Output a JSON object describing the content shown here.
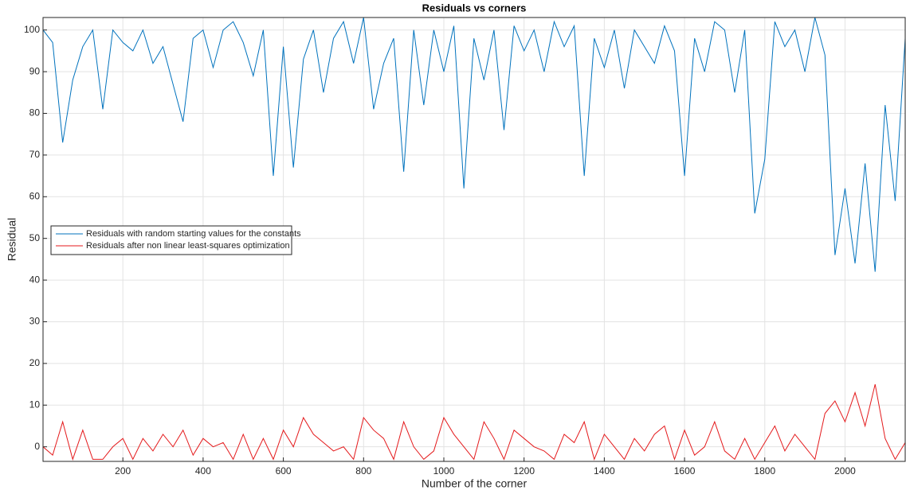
{
  "chart_data": {
    "type": "line",
    "title": "Residuals vs corners",
    "x_label": "Number of the corner",
    "y_label": "Residual",
    "x": [
      1,
      25,
      50,
      75,
      100,
      125,
      150,
      175,
      200,
      225,
      250,
      275,
      300,
      325,
      350,
      375,
      400,
      425,
      450,
      475,
      500,
      525,
      550,
      575,
      600,
      625,
      650,
      675,
      700,
      725,
      750,
      775,
      800,
      825,
      850,
      875,
      900,
      925,
      950,
      975,
      1000,
      1025,
      1050,
      1075,
      1100,
      1125,
      1150,
      1175,
      1200,
      1225,
      1250,
      1275,
      1300,
      1325,
      1350,
      1375,
      1400,
      1425,
      1450,
      1475,
      1500,
      1525,
      1550,
      1575,
      1600,
      1625,
      1650,
      1675,
      1700,
      1725,
      1750,
      1775,
      1800,
      1825,
      1850,
      1875,
      1900,
      1925,
      1950,
      1975,
      2000,
      2025,
      2050,
      2075,
      2100,
      2125,
      2150
    ],
    "series": [
      {
        "name": "Residuals with random starting values for the constants",
        "color": "#0072bd",
        "values": [
          100,
          97,
          73,
          88,
          96,
          100,
          81,
          100,
          97,
          95,
          100,
          92,
          96,
          87,
          78,
          98,
          100,
          91,
          100,
          102,
          97,
          89,
          100,
          65,
          96,
          67,
          93,
          100,
          85,
          98,
          102,
          92,
          103,
          81,
          92,
          98,
          66,
          100,
          82,
          100,
          90,
          101,
          62,
          98,
          88,
          100,
          76,
          101,
          95,
          100,
          90,
          102,
          96,
          101,
          65,
          98,
          91,
          100,
          86,
          100,
          96,
          92,
          101,
          95,
          65,
          98,
          90,
          102,
          100,
          85,
          100,
          56,
          69,
          102,
          96,
          100,
          90,
          103,
          94,
          46,
          62,
          44,
          68,
          42,
          82,
          59,
          98
        ]
      },
      {
        "name": "Residuals after non linear least-squares optimization",
        "color": "#e41a1c",
        "values": [
          0,
          -2,
          6,
          -3,
          4,
          -3,
          -3,
          0,
          2,
          -3,
          2,
          -1,
          3,
          0,
          4,
          -2,
          2,
          0,
          1,
          -3,
          3,
          -3,
          2,
          -3,
          4,
          0,
          7,
          3,
          1,
          -1,
          0,
          -3,
          7,
          4,
          2,
          -3,
          6,
          0,
          -3,
          -1,
          7,
          3,
          0,
          -3,
          6,
          2,
          -3,
          4,
          2,
          0,
          -1,
          -3,
          3,
          1,
          6,
          -3,
          3,
          0,
          -3,
          2,
          -1,
          3,
          5,
          -3,
          4,
          -2,
          0,
          6,
          -1,
          -3,
          2,
          -3,
          1,
          5,
          -1,
          3,
          0,
          -3,
          8,
          11,
          6,
          13,
          5,
          15,
          2,
          -3,
          1
        ]
      }
    ],
    "xlim": [
      1,
      2150
    ],
    "ylim": [
      -3.5,
      103
    ],
    "xticks": [
      200,
      400,
      600,
      800,
      1000,
      1200,
      1400,
      1600,
      1800,
      2000
    ],
    "yticks": [
      0,
      10,
      20,
      30,
      40,
      50,
      60,
      70,
      80,
      90,
      100
    ],
    "grid": true,
    "legend": "left"
  }
}
